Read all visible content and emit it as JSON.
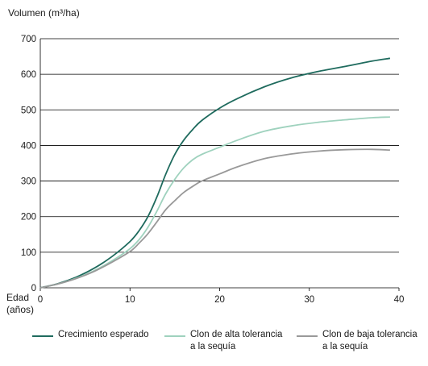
{
  "chart_data": {
    "type": "line",
    "title": "",
    "ylabel": "Volumen (m³/ha)",
    "xlabel": "Edad\n(años)",
    "xlim": [
      0,
      40
    ],
    "ylim": [
      0,
      700
    ],
    "xticks": [
      0,
      10,
      20,
      30,
      40
    ],
    "yticks": [
      0,
      100,
      200,
      300,
      400,
      500,
      600,
      700
    ],
    "grid": "horizontal",
    "legend_position": "bottom",
    "series": [
      {
        "name": "Crecimiento esperado",
        "color": "#1f6b5e",
        "x": [
          0,
          2,
          4,
          6,
          8,
          10,
          11,
          12,
          13,
          14,
          15,
          16,
          17,
          18,
          20,
          22,
          25,
          28,
          31,
          34,
          37,
          39
        ],
        "y": [
          0,
          12,
          30,
          55,
          88,
          130,
          160,
          200,
          255,
          320,
          375,
          415,
          445,
          470,
          505,
          532,
          565,
          590,
          608,
          622,
          637,
          645
        ]
      },
      {
        "name": "Clon de alta tolerancia\na la sequía",
        "color": "#9fd2be",
        "x": [
          0,
          2,
          4,
          6,
          8,
          10,
          11,
          12,
          13,
          14,
          15,
          16,
          17,
          18,
          20,
          22,
          25,
          28,
          31,
          34,
          37,
          39
        ],
        "y": [
          0,
          11,
          27,
          48,
          76,
          110,
          135,
          170,
          215,
          265,
          305,
          337,
          360,
          375,
          395,
          415,
          440,
          455,
          465,
          472,
          478,
          480
        ]
      },
      {
        "name": "Clon de baja tolerancia\na la sequía",
        "color": "#999999",
        "x": [
          0,
          2,
          4,
          6,
          8,
          10,
          11,
          12,
          13,
          14,
          15,
          16,
          17,
          18,
          20,
          22,
          25,
          28,
          31,
          34,
          37,
          39
        ],
        "y": [
          0,
          11,
          26,
          46,
          72,
          102,
          125,
          152,
          185,
          220,
          245,
          268,
          285,
          300,
          320,
          340,
          363,
          376,
          384,
          388,
          389,
          387
        ]
      }
    ]
  }
}
